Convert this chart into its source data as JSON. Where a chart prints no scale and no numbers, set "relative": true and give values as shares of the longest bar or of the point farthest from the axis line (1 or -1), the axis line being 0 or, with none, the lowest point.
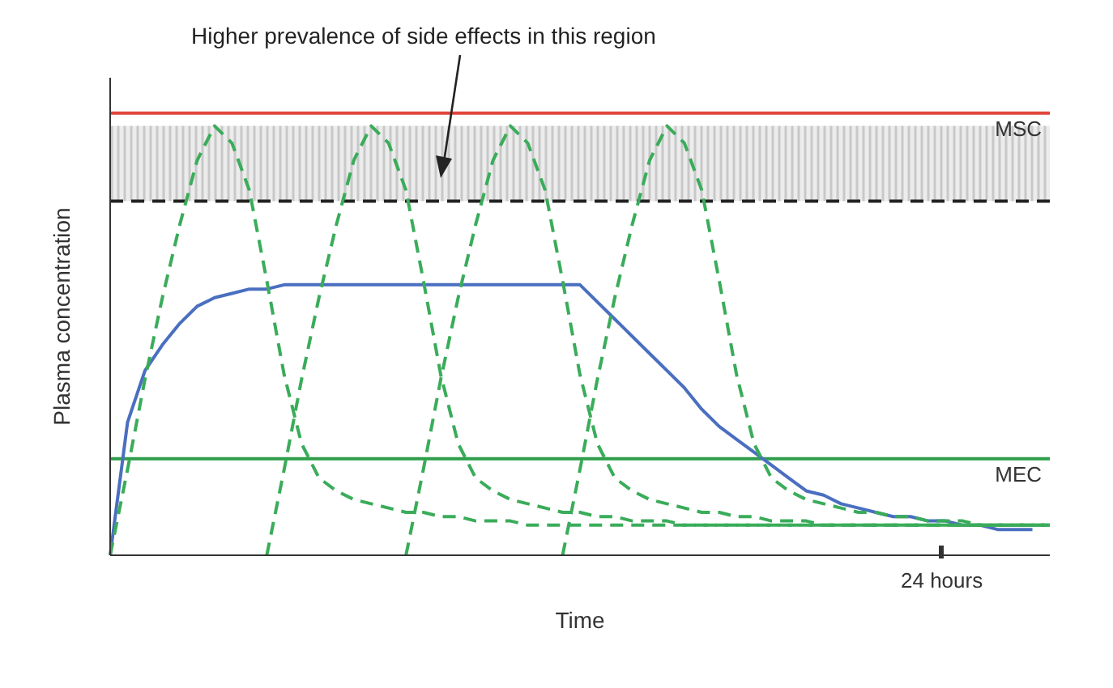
{
  "chart_data": {
    "type": "line",
    "relative": true,
    "xlabel": "Time",
    "ylabel": "Plasma concentration",
    "annotations": [
      "Higher prevalence of side effects in this region",
      "24 hours"
    ],
    "categories": [
      null,
      null,
      null,
      null,
      null,
      null,
      null,
      null,
      null,
      null,
      null,
      null,
      null,
      null,
      null,
      null,
      null,
      null,
      null,
      null,
      null,
      null,
      null,
      null,
      null,
      null,
      null,
      null,
      null,
      null,
      null,
      null,
      null,
      null,
      null,
      null,
      null,
      null,
      null,
      null,
      null,
      null,
      null,
      null,
      null,
      null,
      null,
      null,
      null,
      null,
      null,
      null,
      null,
      null,
      null
    ],
    "grid": false,
    "legend": false,
    "marker": "none",
    "series": [
      {
        "color": "#4a6fc0",
        "line_style": "solid",
        "values": [
          0,
          0.31,
          0.43,
          0.49,
          0.54,
          0.58,
          0.6,
          0.61,
          0.62,
          0.62,
          0.63,
          0.63,
          0.63,
          0.63,
          0.63,
          0.63,
          0.63,
          0.63,
          0.63,
          0.63,
          0.63,
          0.63,
          0.63,
          0.63,
          0.63,
          0.63,
          0.63,
          0.63,
          0.59,
          0.55,
          0.51,
          0.47,
          0.43,
          0.39,
          0.34,
          0.3,
          0.27,
          0.24,
          0.21,
          0.18,
          0.15,
          0.14,
          0.12,
          0.11,
          0.1,
          0.09,
          0.09,
          0.08,
          0.08,
          0.07,
          0.07,
          0.06,
          0.06,
          0.06,
          null
        ]
      },
      {
        "color": "#3aac5a",
        "line_style": "dashed",
        "values": [
          0,
          0.2,
          0.41,
          0.6,
          0.77,
          0.92,
          1.0,
          0.96,
          0.85,
          0.64,
          0.42,
          0.26,
          0.18,
          0.15,
          0.13,
          0.12,
          0.11,
          0.1,
          0.1,
          0.09,
          0.09,
          0.08,
          0.08,
          0.08,
          0.07,
          0.07,
          0.07,
          0.07,
          0.07,
          0.07,
          0.07,
          0.07,
          0.07,
          0.07,
          0.07,
          0.07,
          0.07,
          0.07,
          0.07,
          0.07,
          0.07,
          0.07,
          0.07,
          0.07,
          0.07,
          0.07,
          0.07,
          0.07,
          0.07,
          0.07,
          0.07,
          0.07,
          0.07,
          0.07,
          0.07
        ]
      },
      {
        "color": "#3aac5a",
        "line_style": "dashed",
        "values": [
          null,
          null,
          null,
          null,
          null,
          null,
          null,
          null,
          null,
          0,
          0.2,
          0.41,
          0.6,
          0.77,
          0.92,
          1.0,
          0.96,
          0.85,
          0.64,
          0.42,
          0.26,
          0.18,
          0.15,
          0.13,
          0.12,
          0.11,
          0.1,
          0.1,
          0.09,
          0.09,
          0.08,
          0.08,
          0.08,
          0.07,
          0.07,
          0.07,
          0.07,
          0.07,
          0.07,
          0.07,
          0.07,
          0.07,
          0.07,
          0.07,
          0.07,
          0.07,
          0.07,
          0.07,
          0.07,
          0.07,
          0.07,
          0.07,
          0.07,
          0.07,
          0.07
        ]
      },
      {
        "color": "#3aac5a",
        "line_style": "dashed",
        "values": [
          null,
          null,
          null,
          null,
          null,
          null,
          null,
          null,
          null,
          null,
          null,
          null,
          null,
          null,
          null,
          null,
          null,
          0,
          0.2,
          0.41,
          0.6,
          0.77,
          0.92,
          1.0,
          0.96,
          0.85,
          0.64,
          0.42,
          0.26,
          0.18,
          0.15,
          0.13,
          0.12,
          0.11,
          0.1,
          0.1,
          0.09,
          0.09,
          0.08,
          0.08,
          0.08,
          0.07,
          0.07,
          0.07,
          0.07,
          0.07,
          0.07,
          0.07,
          0.07,
          0.07,
          0.07,
          0.07,
          0.07,
          0.07,
          0.07
        ]
      },
      {
        "color": "#3aac5a",
        "line_style": "dashed",
        "values": [
          null,
          null,
          null,
          null,
          null,
          null,
          null,
          null,
          null,
          null,
          null,
          null,
          null,
          null,
          null,
          null,
          null,
          null,
          null,
          null,
          null,
          null,
          null,
          null,
          null,
          null,
          0,
          0.2,
          0.41,
          0.6,
          0.77,
          0.92,
          1.0,
          0.96,
          0.85,
          0.64,
          0.42,
          0.26,
          0.18,
          0.15,
          0.13,
          0.12,
          0.11,
          0.1,
          0.1,
          0.09,
          0.09,
          0.08,
          0.08,
          0.08,
          0.07,
          0.07,
          0.07,
          0.07,
          0.07
        ]
      }
    ],
    "ref_lines": [
      {
        "axis": "y",
        "value": 1.03,
        "label": "MSC",
        "color": "#e0463c",
        "line_style": "solid"
      },
      {
        "axis": "y",
        "value": 0.825,
        "label": null,
        "color": "#222222",
        "line_style": "dashed"
      },
      {
        "axis": "y",
        "value": 0.225,
        "label": "MEC",
        "color": "#2e9e4a",
        "line_style": "solid"
      }
    ],
    "bands": [
      {
        "axis": "y",
        "from": 0.825,
        "to": 1.0,
        "label": null,
        "color": "#c8c8c8"
      }
    ]
  }
}
